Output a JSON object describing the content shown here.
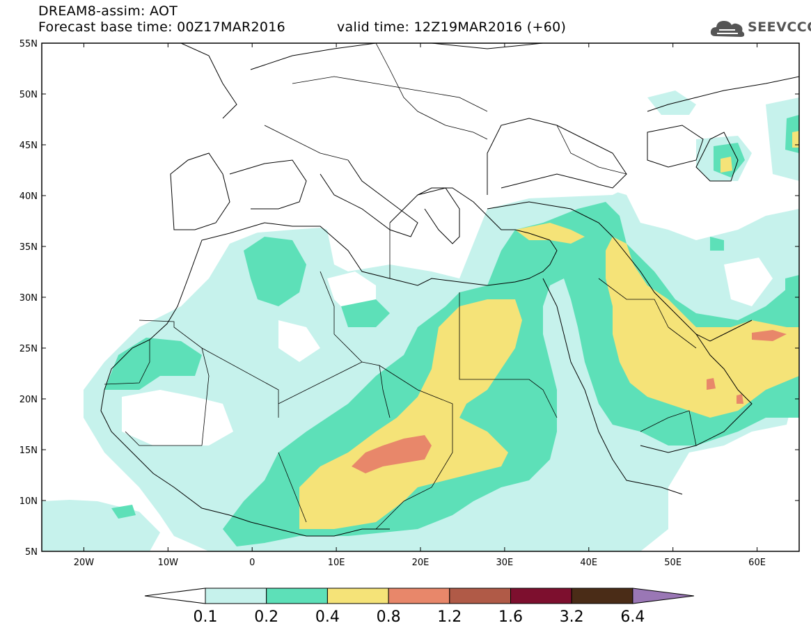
{
  "header": {
    "title": "DREAM8-assim: AOT",
    "base_time": "Forecast base time: 00Z17MAR2016",
    "valid_time": "valid time: 12Z19MAR2016 (+60)"
  },
  "logo": {
    "text": "SEEVCCC",
    "icon": "cloud-icon"
  },
  "map": {
    "lat_labels": [
      "55N",
      "50N",
      "45N",
      "40N",
      "35N",
      "30N",
      "25N",
      "20N",
      "15N",
      "10N",
      "5N"
    ],
    "lon_labels": [
      "20W",
      "10W",
      "0",
      "10E",
      "20E",
      "30E",
      "40E",
      "50E",
      "60E"
    ],
    "lat_range": [
      5,
      55
    ],
    "lon_range": [
      -25,
      65
    ]
  },
  "colorbar": {
    "levels": [
      "0.1",
      "0.2",
      "0.4",
      "0.8",
      "1.2",
      "1.6",
      "3.2",
      "6.4"
    ],
    "colors": [
      "#ffffff",
      "#c6f2ec",
      "#5de0b8",
      "#f5e378",
      "#e8876a",
      "#b05a47",
      "#7d0f2e",
      "#4a2c17",
      "#9a77b5"
    ]
  }
}
